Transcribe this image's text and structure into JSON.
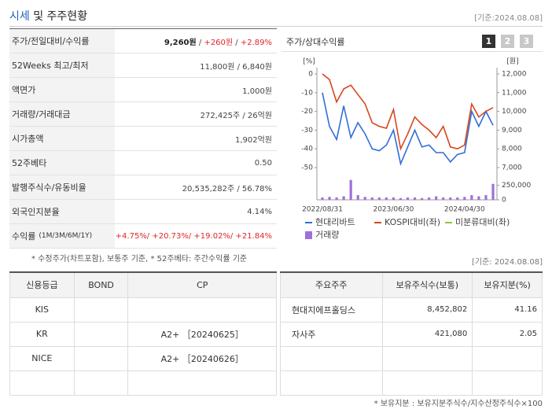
{
  "header": {
    "title_highlight": "시세",
    "title_rest": "및 주주현황",
    "date": "[기준:2024.08.08]"
  },
  "summary": {
    "rows": [
      {
        "label": [
          "주가/전일대비/수익률"
        ],
        "value": [
          {
            "text": "9,260원",
            "tone": "strong"
          },
          {
            "text": " / "
          },
          {
            "text": "+260원",
            "tone": "up"
          },
          {
            "text": " / "
          },
          {
            "text": "+2.89%",
            "tone": "up"
          }
        ]
      },
      {
        "label": [
          "52Weeks 최고/최저"
        ],
        "value": [
          {
            "text": "11,800원 / 6,840원"
          }
        ]
      },
      {
        "label": [
          "액면가"
        ],
        "value": [
          {
            "text": "1,000원"
          }
        ]
      },
      {
        "label": [
          "거래량/거래대금"
        ],
        "value": [
          {
            "text": "272,425주 / 26억원"
          }
        ]
      },
      {
        "label": [
          "시가총액"
        ],
        "value": [
          {
            "text": "1,902억원"
          }
        ]
      },
      {
        "label": [
          "52주베타"
        ],
        "value": [
          {
            "text": "0.50"
          }
        ]
      },
      {
        "label": [
          "발행주식수/유동비율"
        ],
        "value": [
          {
            "text": "20,535,282주 / 56.78%"
          }
        ]
      },
      {
        "label": [
          "외국인지분율"
        ],
        "value": [
          {
            "text": "4.14%"
          }
        ]
      },
      {
        "label": [
          "수익률",
          "(1M/3M/6M/1Y)"
        ],
        "value": [
          {
            "text": "+4.75%/ ",
            "tone": "up"
          },
          {
            "text": "+20.73%/ ",
            "tone": "up"
          },
          {
            "text": "+19.02%/ ",
            "tone": "up"
          },
          {
            "text": "+21.84%",
            "tone": "up"
          }
        ]
      }
    ],
    "note": "* 수정주가(차트포함), 보통주 기준, * 52주베타: 주간수익률 기준"
  },
  "chart_data": {
    "type": "line",
    "title": "주가/상대수익률",
    "pages": [
      "1",
      "2",
      "3"
    ],
    "active_page": 0,
    "y_unit": "[%]",
    "y2_unit": "[원]",
    "categories": [
      "2022/08/31",
      null,
      null,
      null,
      null,
      null,
      null,
      null,
      null,
      null,
      "2023/06/30",
      null,
      null,
      null,
      null,
      null,
      null,
      null,
      null,
      null,
      "2024/04/30",
      null,
      null,
      null,
      null
    ],
    "ylim": [
      -50,
      0
    ],
    "yticks": [
      0,
      -10,
      -20,
      -30,
      -40,
      -50
    ],
    "y2lim": [
      7000,
      12000
    ],
    "y2ticks": [
      {
        "value": 12000,
        "label": "12,000"
      },
      {
        "value": 11000,
        "label": "11,000"
      },
      {
        "value": 10000,
        "label": "10,000"
      },
      {
        "value": 9000,
        "label": "9,000"
      },
      {
        "value": 8000,
        "label": "8,000"
      },
      {
        "value": 7000,
        "label": "7,000"
      }
    ],
    "y3lim": [
      0,
      350000
    ],
    "y3ticks": [
      {
        "value": 250000,
        "label": "250,000"
      },
      0
    ],
    "series": [
      {
        "name": "현대리바트",
        "color": "#2f6fd6",
        "axis": "y2",
        "kind": "line",
        "values": [
          11000,
          9200,
          8500,
          10300,
          8600,
          9400,
          8800,
          8000,
          7900,
          8200,
          9000,
          7200,
          8100,
          9000,
          8100,
          8200,
          7800,
          7800,
          7300,
          7700,
          7800,
          10000,
          9200,
          10000,
          9260
        ]
      },
      {
        "name": "KOSPI대비(좌)",
        "color": "#d9461d",
        "axis": "y",
        "kind": "line",
        "values": [
          0,
          -3,
          -15,
          -8,
          -6,
          -11,
          -16,
          -26,
          -28,
          -29,
          -19,
          -40,
          -32,
          -23,
          -27,
          -30,
          -34,
          -28,
          -39,
          -40,
          -38,
          -16,
          -23,
          -20,
          -18
        ]
      },
      {
        "name": "미분류대비(좌)",
        "color": "#8cc63f",
        "axis": "y",
        "kind": "line",
        "values": [
          null,
          null,
          null,
          null,
          null,
          null,
          null,
          null,
          null,
          null,
          null,
          null,
          null,
          null,
          null,
          null,
          null,
          null,
          null,
          null,
          null,
          null,
          null,
          null,
          null
        ]
      },
      {
        "name": "거래량",
        "color": "#a070d8",
        "axis": "y3",
        "kind": "bar",
        "values": [
          40000,
          50000,
          40000,
          60000,
          340000,
          80000,
          50000,
          40000,
          40000,
          40000,
          40000,
          30000,
          40000,
          40000,
          30000,
          40000,
          60000,
          40000,
          40000,
          40000,
          50000,
          80000,
          60000,
          80000,
          272425
        ]
      }
    ]
  },
  "chart_date": "[기준: 2024.08.08]",
  "credit": {
    "columns": [
      "신용등급",
      "BOND",
      "CP"
    ],
    "rows": [
      [
        "KIS",
        null,
        null
      ],
      [
        "KR",
        null,
        "A2+ ［20240625］"
      ],
      [
        "NICE",
        null,
        "A2+ ［20240626］"
      ]
    ]
  },
  "holders": {
    "columns": [
      "주요주주",
      "보유주식수(보통)",
      "보유지분(%)"
    ],
    "rows": [
      [
        "현대지에프홀딩스",
        "8,452,802",
        "41.16"
      ],
      [
        "자사주",
        "421,080",
        "2.05"
      ]
    ],
    "note": "* 보유지분 : 보유지분주식수/지수산정주식수×100"
  }
}
